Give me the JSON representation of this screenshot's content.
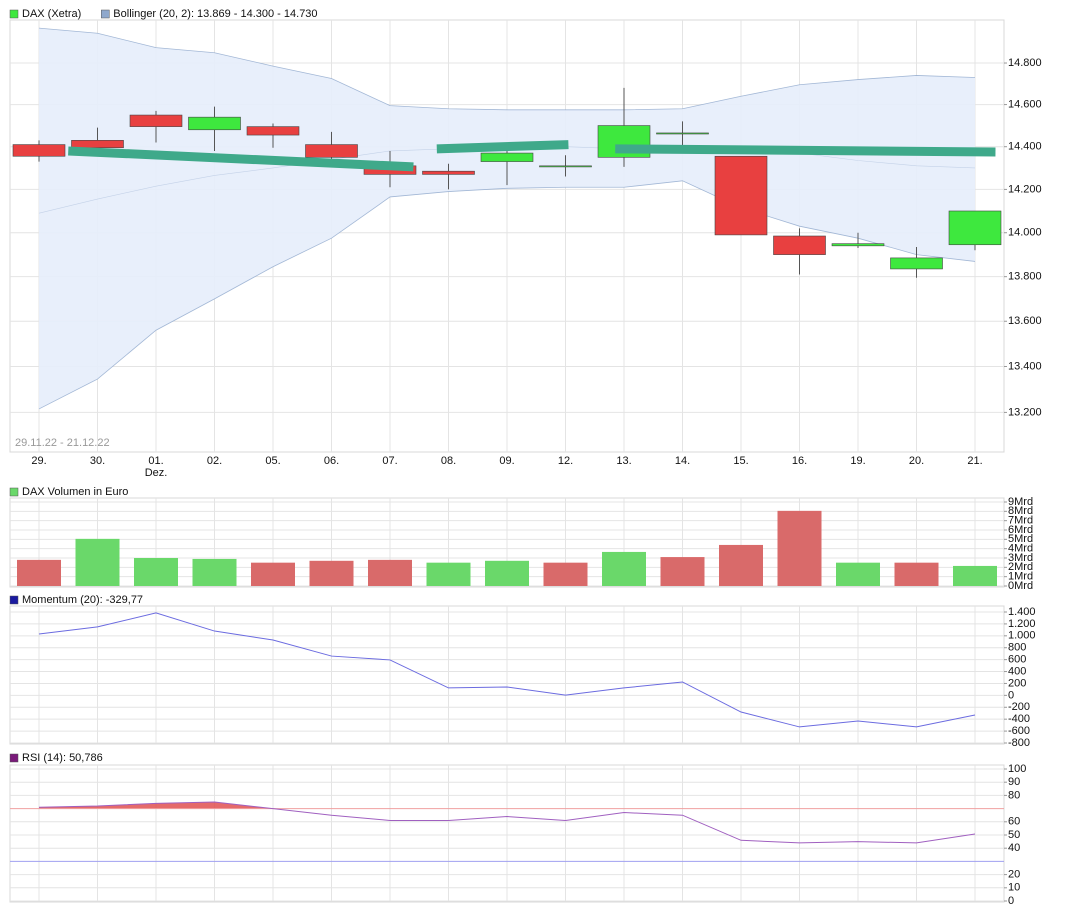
{
  "chart_data": [
    {
      "type": "candlestick",
      "date_range": "29.11.22 - 21.12.22",
      "categories": [
        "29.",
        "30.",
        "01.",
        "02.",
        "05.",
        "06.",
        "07.",
        "08.",
        "09.",
        "12.",
        "13.",
        "14.",
        "15.",
        "16.",
        "19.",
        "20.",
        "21."
      ],
      "category_sublabels": [
        null,
        null,
        "Dez.",
        null,
        null,
        null,
        null,
        null,
        null,
        null,
        null,
        null,
        null,
        null,
        null,
        null,
        null
      ],
      "series": [
        {
          "name": "DAX (Xetra)",
          "color": "#3ee83e",
          "up_color": "#3ee83e",
          "down_color": "#e84040",
          "open": [
            14410,
            14430,
            14550,
            14480,
            14495,
            14410,
            14310,
            14285,
            14330,
            14305,
            14350,
            14460,
            14355,
            13985,
            13940,
            13835,
            13945
          ],
          "high": [
            14430,
            14490,
            14570,
            14590,
            14510,
            14470,
            14380,
            14320,
            14400,
            14360,
            14680,
            14520,
            14355,
            14020,
            14000,
            13935,
            14100
          ],
          "low": [
            14330,
            14395,
            14420,
            14380,
            14395,
            14330,
            14210,
            14200,
            14220,
            14260,
            14305,
            14395,
            13990,
            13810,
            13930,
            13795,
            13920
          ],
          "close": [
            14355,
            14395,
            14495,
            14540,
            14455,
            14350,
            14270,
            14270,
            14370,
            14310,
            14500,
            14465,
            13990,
            13900,
            13950,
            13885,
            14100
          ]
        }
      ],
      "bands": {
        "name": "Bollinger (20, 2): 13.869 - 14.300 - 14.730",
        "color": "#8fa8cc",
        "upper": [
          14970,
          14945,
          14875,
          14850,
          14785,
          14725,
          14595,
          14580,
          14575,
          14575,
          14575,
          14580,
          14640,
          14695,
          14720,
          14740,
          14730
        ],
        "middle": [
          14090,
          14155,
          14215,
          14265,
          14300,
          14340,
          14380,
          14390,
          14400,
          14400,
          14390,
          14390,
          14390,
          14370,
          14335,
          14310,
          14300
        ],
        "lower": [
          13215,
          13345,
          13560,
          13700,
          13845,
          13975,
          14165,
          14190,
          14205,
          14210,
          14210,
          14240,
          14115,
          14030,
          13975,
          13900,
          13869
        ]
      },
      "trend_lines": [
        {
          "color": "#3fa98a",
          "x": [
            0.5,
            6.4
          ],
          "values": [
            14380,
            14305
          ]
        },
        {
          "color": "#3fa98a",
          "x": [
            6.8,
            9.05
          ],
          "values": [
            14390,
            14410
          ]
        },
        {
          "color": "#3fa98a",
          "x": [
            9.85,
            16.35
          ],
          "values": [
            14390,
            14375
          ]
        }
      ],
      "log_scale": true,
      "grid": true,
      "ylim": [
        13030,
        15010
      ],
      "yticks": [
        {
          "value": 13200,
          "label": "13.200"
        },
        {
          "value": 13400,
          "label": "13.400"
        },
        {
          "value": 13600,
          "label": "13.600"
        },
        {
          "value": 13800,
          "label": "13.800"
        },
        {
          "value": 14000,
          "label": "14.000"
        },
        {
          "value": 14200,
          "label": "14.200"
        },
        {
          "value": 14400,
          "label": "14.400"
        },
        {
          "value": 14600,
          "label": "14.600"
        },
        {
          "value": 14800,
          "label": "14.800"
        }
      ]
    },
    {
      "type": "bar",
      "grid": true,
      "series": [
        {
          "name": "DAX Volumen in Euro",
          "color": "#6ad86a",
          "values": [
            2.8,
            5.05,
            3.0,
            2.9,
            2.5,
            2.7,
            2.8,
            2.5,
            2.7,
            2.5,
            3.65,
            3.1,
            4.4,
            8.05,
            2.5,
            2.5,
            2.15
          ],
          "colors": [
            "#d96a6a",
            "#6ad86a",
            "#6ad86a",
            "#6ad86a",
            "#d96a6a",
            "#d96a6a",
            "#d96a6a",
            "#6ad86a",
            "#6ad86a",
            "#d96a6a",
            "#6ad86a",
            "#d96a6a",
            "#d96a6a",
            "#d96a6a",
            "#6ad86a",
            "#d96a6a",
            "#6ad86a"
          ]
        }
      ],
      "ylim": [
        0,
        9
      ],
      "yticks": [
        {
          "value": 0,
          "label": "0Mrd"
        },
        {
          "value": 1,
          "label": "1Mrd"
        },
        {
          "value": 2,
          "label": "2Mrd"
        },
        {
          "value": 3,
          "label": "3Mrd"
        },
        {
          "value": 4,
          "label": "4Mrd"
        },
        {
          "value": 5,
          "label": "5Mrd"
        },
        {
          "value": 6,
          "label": "6Mrd"
        },
        {
          "value": 7,
          "label": "7Mrd"
        },
        {
          "value": 8,
          "label": "8Mrd"
        },
        {
          "value": 9,
          "label": "9Mrd"
        }
      ]
    },
    {
      "type": "line",
      "grid": true,
      "series": [
        {
          "name": "Momentum (20): -329,77",
          "color": "#1a1aa0",
          "line_color": "#6b6be0",
          "values": [
            1030,
            1150,
            1385,
            1080,
            930,
            660,
            595,
            125,
            140,
            5,
            125,
            225,
            -280,
            -530,
            -430,
            -530,
            -329.77
          ]
        }
      ],
      "ylim": [
        -800,
        1400
      ],
      "yticks": [
        {
          "value": 1400,
          "label": "1.400"
        },
        {
          "value": 1200,
          "label": "1.200"
        },
        {
          "value": 1000,
          "label": "1.000"
        },
        800,
        600,
        400,
        200,
        0,
        -200,
        -400,
        -600,
        -800
      ]
    },
    {
      "type": "line",
      "grid": true,
      "series": [
        {
          "name": "RSI (14): 50,786",
          "color": "#7a1a7a",
          "line_color": "#a060c0",
          "values": [
            71,
            72,
            74,
            75,
            70,
            65,
            61,
            61,
            64,
            61,
            67,
            65,
            46,
            44,
            45,
            44,
            50.786
          ]
        }
      ],
      "overbought": {
        "value": 70,
        "color": "#f0a0a0",
        "fill": "#e05050"
      },
      "oversold": {
        "value": 30,
        "color": "#a0a0f0"
      },
      "ylim": [
        0,
        100
      ],
      "yticks": [
        100,
        90,
        80,
        60,
        50,
        40,
        20,
        10,
        0
      ]
    }
  ]
}
